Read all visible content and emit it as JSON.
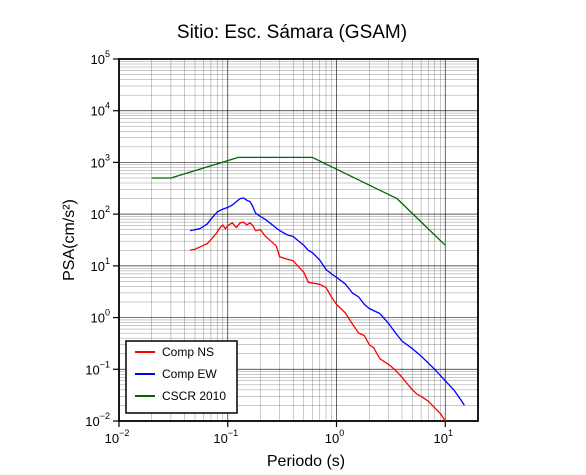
{
  "chart_data": {
    "type": "line",
    "title": "Sitio: Esc. Sámara (GSAM)",
    "xlabel": "Periodo (s)",
    "ylabel": "PSA(cm/s²)",
    "xscale": "log",
    "yscale": "log",
    "xlim": [
      0.01,
      20
    ],
    "ylim": [
      0.01,
      100000
    ],
    "grid": true,
    "legend_position": "bottom-left",
    "x_ticks": [
      {
        "base": "10",
        "exp": "−2",
        "value": 0.01
      },
      {
        "base": "10",
        "exp": "−1",
        "value": 0.1
      },
      {
        "base": "10",
        "exp": "0",
        "value": 1
      },
      {
        "base": "10",
        "exp": "1",
        "value": 10
      }
    ],
    "y_ticks": [
      {
        "base": "10",
        "exp": "−2",
        "value": 0.01
      },
      {
        "base": "10",
        "exp": "−1",
        "value": 0.1
      },
      {
        "base": "10",
        "exp": "0",
        "value": 1
      },
      {
        "base": "10",
        "exp": "1",
        "value": 10
      },
      {
        "base": "10",
        "exp": "2",
        "value": 100
      },
      {
        "base": "10",
        "exp": "3",
        "value": 1000
      },
      {
        "base": "10",
        "exp": "4",
        "value": 10000
      },
      {
        "base": "10",
        "exp": "5",
        "value": 100000
      }
    ],
    "series": [
      {
        "name": "Comp NS",
        "color": "#ff0000",
        "points": [
          [
            0.045,
            20
          ],
          [
            0.05,
            21
          ],
          [
            0.055,
            23
          ],
          [
            0.06,
            25
          ],
          [
            0.065,
            27
          ],
          [
            0.07,
            32
          ],
          [
            0.075,
            38
          ],
          [
            0.08,
            45
          ],
          [
            0.085,
            55
          ],
          [
            0.09,
            62
          ],
          [
            0.095,
            52
          ],
          [
            0.1,
            60
          ],
          [
            0.11,
            68
          ],
          [
            0.12,
            55
          ],
          [
            0.13,
            68
          ],
          [
            0.14,
            70
          ],
          [
            0.15,
            62
          ],
          [
            0.16,
            68
          ],
          [
            0.17,
            60
          ],
          [
            0.18,
            48
          ],
          [
            0.2,
            50
          ],
          [
            0.22,
            38
          ],
          [
            0.25,
            30
          ],
          [
            0.28,
            24
          ],
          [
            0.3,
            15
          ],
          [
            0.35,
            13.5
          ],
          [
            0.4,
            12.5
          ],
          [
            0.45,
            9.5
          ],
          [
            0.5,
            7.5
          ],
          [
            0.55,
            4.8
          ],
          [
            0.7,
            4.4
          ],
          [
            0.8,
            3.8
          ],
          [
            0.9,
            2.5
          ],
          [
            1.0,
            1.8
          ],
          [
            1.2,
            1.25
          ],
          [
            1.4,
            0.75
          ],
          [
            1.6,
            0.5
          ],
          [
            1.8,
            0.45
          ],
          [
            2.0,
            0.3
          ],
          [
            2.2,
            0.26
          ],
          [
            2.5,
            0.16
          ],
          [
            3.0,
            0.125
          ],
          [
            3.5,
            0.095
          ],
          [
            4.0,
            0.07
          ],
          [
            4.5,
            0.052
          ],
          [
            5.0,
            0.04
          ],
          [
            5.5,
            0.033
          ],
          [
            6.0,
            0.03
          ],
          [
            7.0,
            0.024
          ],
          [
            8.0,
            0.018
          ],
          [
            9.0,
            0.014
          ],
          [
            10.0,
            0.01
          ]
        ]
      },
      {
        "name": "Comp EW",
        "color": "#0000ff",
        "points": [
          [
            0.045,
            48
          ],
          [
            0.05,
            50
          ],
          [
            0.055,
            52
          ],
          [
            0.06,
            58
          ],
          [
            0.065,
            65
          ],
          [
            0.07,
            80
          ],
          [
            0.08,
            110
          ],
          [
            0.09,
            125
          ],
          [
            0.1,
            135
          ],
          [
            0.11,
            150
          ],
          [
            0.12,
            175
          ],
          [
            0.13,
            200
          ],
          [
            0.14,
            205
          ],
          [
            0.15,
            185
          ],
          [
            0.16,
            175
          ],
          [
            0.17,
            140
          ],
          [
            0.18,
            105
          ],
          [
            0.2,
            90
          ],
          [
            0.22,
            80
          ],
          [
            0.25,
            65
          ],
          [
            0.3,
            48
          ],
          [
            0.35,
            40
          ],
          [
            0.4,
            37
          ],
          [
            0.45,
            30
          ],
          [
            0.5,
            25
          ],
          [
            0.55,
            20
          ],
          [
            0.6,
            18
          ],
          [
            0.7,
            13
          ],
          [
            0.8,
            8.5
          ],
          [
            0.9,
            7
          ],
          [
            1.0,
            6
          ],
          [
            1.2,
            4.5
          ],
          [
            1.4,
            3
          ],
          [
            1.6,
            2.5
          ],
          [
            1.8,
            1.8
          ],
          [
            2.0,
            1.5
          ],
          [
            2.5,
            1.2
          ],
          [
            3.0,
            0.78
          ],
          [
            3.5,
            0.5
          ],
          [
            4.0,
            0.35
          ],
          [
            5.0,
            0.25
          ],
          [
            6.0,
            0.18
          ],
          [
            8.0,
            0.1
          ],
          [
            10.0,
            0.06
          ],
          [
            12.0,
            0.04
          ],
          [
            14.0,
            0.025
          ],
          [
            15.0,
            0.02
          ]
        ]
      },
      {
        "name": "CSCR 2010",
        "color": "#006400",
        "points": [
          [
            0.02,
            500
          ],
          [
            0.03,
            500
          ],
          [
            0.125,
            1250
          ],
          [
            0.6,
            1250
          ],
          [
            3.6,
            200
          ],
          [
            10.0,
            25
          ]
        ]
      }
    ]
  }
}
